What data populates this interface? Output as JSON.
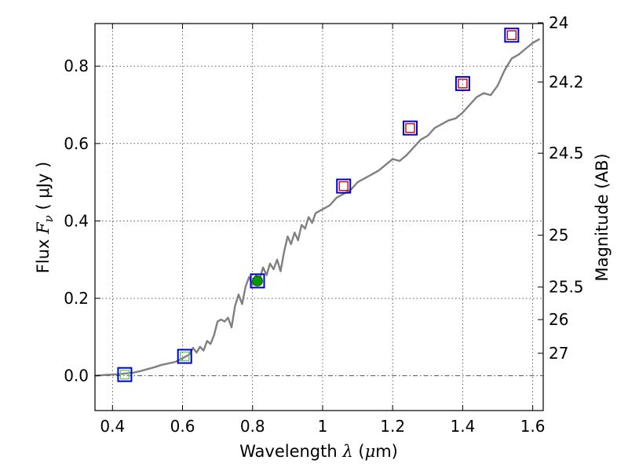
{
  "chart_data": {
    "type": "line",
    "title": "",
    "xlabel_prefix": "Wavelength",
    "xlabel_symbol": "λ",
    "xlabel_unit_open": " (",
    "xlabel_unit_mu": "μ",
    "xlabel_unit_close": "m)",
    "ylabel_prefix": "Flux",
    "ylabel_symbol": "F",
    "ylabel_sub": "ν",
    "ylabel_unit": "( μJy )",
    "y2label": "Magnitude (AB)",
    "xlim": [
      0.35,
      1.63
    ],
    "ylim": [
      -0.09,
      0.91
    ],
    "grid": true,
    "x_ticks": [
      0.4,
      0.6,
      0.8,
      1.0,
      1.2,
      1.4,
      1.6
    ],
    "x_tick_labels": [
      "0.4",
      "0.6",
      "0.8",
      "1",
      "1.2",
      "1.4",
      "1.6"
    ],
    "y_ticks": [
      0.0,
      0.2,
      0.4,
      0.6,
      0.8
    ],
    "y_tick_labels": [
      "0.0",
      "0.2",
      "0.4",
      "0.6",
      "0.8"
    ],
    "y2_ticks": [
      {
        "label": "24",
        "flux": 0.912
      },
      {
        "label": "24.2",
        "flux": 0.759
      },
      {
        "label": "24.5",
        "flux": 0.575
      },
      {
        "label": "25",
        "flux": 0.363
      },
      {
        "label": "25.5",
        "flux": 0.229
      },
      {
        "label": "26",
        "flux": 0.145
      },
      {
        "label": "27",
        "flux": 0.058
      }
    ],
    "zero_line": 0.0,
    "sed_line": {
      "color": "#808080",
      "x": [
        0.35,
        0.38,
        0.4,
        0.42,
        0.44,
        0.46,
        0.48,
        0.5,
        0.52,
        0.54,
        0.56,
        0.58,
        0.6,
        0.62,
        0.63,
        0.64,
        0.65,
        0.66,
        0.67,
        0.68,
        0.69,
        0.7,
        0.71,
        0.72,
        0.73,
        0.74,
        0.75,
        0.76,
        0.77,
        0.78,
        0.79,
        0.8,
        0.81,
        0.82,
        0.83,
        0.84,
        0.85,
        0.86,
        0.87,
        0.88,
        0.89,
        0.9,
        0.91,
        0.92,
        0.93,
        0.94,
        0.95,
        0.96,
        0.97,
        0.98,
        1.0,
        1.02,
        1.04,
        1.06,
        1.08,
        1.1,
        1.12,
        1.14,
        1.16,
        1.18,
        1.2,
        1.22,
        1.24,
        1.26,
        1.28,
        1.3,
        1.32,
        1.34,
        1.36,
        1.38,
        1.4,
        1.42,
        1.44,
        1.46,
        1.48,
        1.5,
        1.52,
        1.54,
        1.56,
        1.58,
        1.6,
        1.62
      ],
      "y": [
        0.0,
        0.002,
        0.003,
        0.004,
        0.006,
        0.008,
        0.012,
        0.017,
        0.022,
        0.028,
        0.032,
        0.036,
        0.045,
        0.055,
        0.072,
        0.06,
        0.075,
        0.065,
        0.09,
        0.082,
        0.105,
        0.14,
        0.145,
        0.14,
        0.15,
        0.125,
        0.18,
        0.21,
        0.185,
        0.23,
        0.255,
        0.235,
        0.26,
        0.25,
        0.28,
        0.26,
        0.29,
        0.275,
        0.3,
        0.27,
        0.32,
        0.36,
        0.34,
        0.37,
        0.35,
        0.39,
        0.38,
        0.41,
        0.395,
        0.42,
        0.43,
        0.44,
        0.46,
        0.47,
        0.48,
        0.5,
        0.51,
        0.52,
        0.53,
        0.545,
        0.56,
        0.555,
        0.57,
        0.59,
        0.61,
        0.62,
        0.64,
        0.65,
        0.66,
        0.665,
        0.68,
        0.7,
        0.72,
        0.73,
        0.725,
        0.75,
        0.79,
        0.82,
        0.83,
        0.845,
        0.86,
        0.87
      ]
    },
    "photometry_open": {
      "x": [
        0.435,
        0.606,
        1.06,
        1.25,
        1.4,
        1.54
      ],
      "y": [
        0.003,
        0.05,
        0.49,
        0.64,
        0.755,
        0.88
      ],
      "inner_colors": [
        "#66cc66",
        "#66cc66",
        "#cc0000",
        "#cc0000",
        "#cc0000",
        "#cc0000"
      ],
      "outer_color": "#0000cc"
    },
    "photometry_filled": {
      "x": [
        0.814
      ],
      "y": [
        0.245
      ],
      "fill_color": "#009900",
      "outer_color": "#0000cc"
    }
  }
}
